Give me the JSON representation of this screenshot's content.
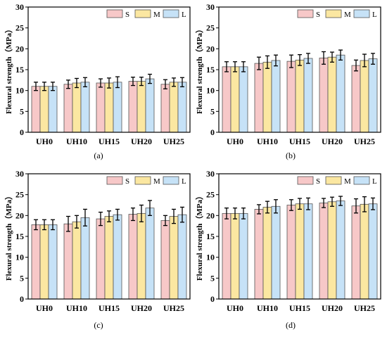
{
  "colors": {
    "S": "#f7c8c8",
    "M": "#fbe7a1",
    "L": "#c6e2f7"
  },
  "chart_data": [
    {
      "type": "bar",
      "panel_label": "(a)",
      "ylabel": "Flexural strength（MPa）",
      "ylim": [
        0,
        30
      ],
      "yticks": [
        0,
        5,
        10,
        15,
        20,
        25,
        30
      ],
      "legend_position": "top-right",
      "categories": [
        "UH0",
        "UH10",
        "UH15",
        "UH20",
        "UH25"
      ],
      "series": [
        {
          "name": "S",
          "values": [
            11.0,
            11.5,
            11.8,
            12.2,
            11.5
          ],
          "errors": [
            1.0,
            1.0,
            1.0,
            1.0,
            1.1
          ]
        },
        {
          "name": "M",
          "values": [
            11.0,
            11.8,
            11.8,
            12.2,
            12.0
          ],
          "errors": [
            1.0,
            1.1,
            1.2,
            1.0,
            1.0
          ]
        },
        {
          "name": "L",
          "values": [
            11.0,
            12.0,
            12.0,
            12.8,
            12.0
          ],
          "errors": [
            1.0,
            1.1,
            1.3,
            1.1,
            1.1
          ]
        }
      ]
    },
    {
      "type": "bar",
      "panel_label": "(b)",
      "ylabel": "Flexural strength（MPa）",
      "ylim": [
        0,
        30
      ],
      "yticks": [
        0,
        5,
        10,
        15,
        20,
        25,
        30
      ],
      "legend_position": "top-right",
      "categories": [
        "UH0",
        "UH10",
        "UH15",
        "UH20",
        "UH25"
      ],
      "series": [
        {
          "name": "S",
          "values": [
            15.7,
            16.5,
            17.0,
            17.8,
            16.0
          ],
          "errors": [
            1.2,
            1.5,
            1.5,
            1.5,
            1.3
          ]
        },
        {
          "name": "M",
          "values": [
            15.7,
            16.8,
            17.3,
            18.0,
            17.2
          ],
          "errors": [
            1.2,
            1.5,
            1.3,
            1.2,
            1.5
          ]
        },
        {
          "name": "L",
          "values": [
            15.7,
            17.2,
            17.7,
            18.5,
            17.6
          ],
          "errors": [
            1.2,
            1.3,
            1.2,
            1.2,
            1.3
          ]
        }
      ]
    },
    {
      "type": "bar",
      "panel_label": "(c)",
      "ylabel": "Flexural strength（MPa）",
      "ylim": [
        0,
        30
      ],
      "yticks": [
        0,
        5,
        10,
        15,
        20,
        25,
        30
      ],
      "legend_position": "top-right",
      "categories": [
        "UH0",
        "UH10",
        "UH15",
        "UH20",
        "UH25"
      ],
      "series": [
        {
          "name": "S",
          "values": [
            17.8,
            18.0,
            19.2,
            20.3,
            18.8
          ],
          "errors": [
            1.2,
            1.8,
            1.6,
            1.5,
            1.2
          ]
        },
        {
          "name": "M",
          "values": [
            17.8,
            18.5,
            19.8,
            20.5,
            19.8
          ],
          "errors": [
            1.2,
            1.5,
            1.3,
            2.0,
            1.7
          ]
        },
        {
          "name": "L",
          "values": [
            17.8,
            19.5,
            20.2,
            21.8,
            20.2
          ],
          "errors": [
            1.2,
            2.0,
            1.3,
            1.8,
            1.8
          ]
        }
      ]
    },
    {
      "type": "bar",
      "panel_label": "(d)",
      "ylabel": "Flexural strength（MPa）",
      "ylim": [
        0,
        30
      ],
      "yticks": [
        0,
        5,
        10,
        15,
        20,
        25,
        30
      ],
      "legend_position": "top-right",
      "categories": [
        "UH0",
        "UH10",
        "UH15",
        "UH20",
        "UH25"
      ],
      "series": [
        {
          "name": "S",
          "values": [
            20.5,
            21.5,
            22.5,
            23.0,
            22.3
          ],
          "errors": [
            1.3,
            1.1,
            1.3,
            1.1,
            1.7
          ]
        },
        {
          "name": "M",
          "values": [
            20.5,
            22.0,
            22.8,
            23.3,
            22.7
          ],
          "errors": [
            1.3,
            1.4,
            1.3,
            1.1,
            1.8
          ]
        },
        {
          "name": "L",
          "values": [
            20.5,
            22.2,
            22.8,
            23.5,
            22.8
          ],
          "errors": [
            1.3,
            1.6,
            1.4,
            1.1,
            1.4
          ]
        }
      ]
    }
  ]
}
